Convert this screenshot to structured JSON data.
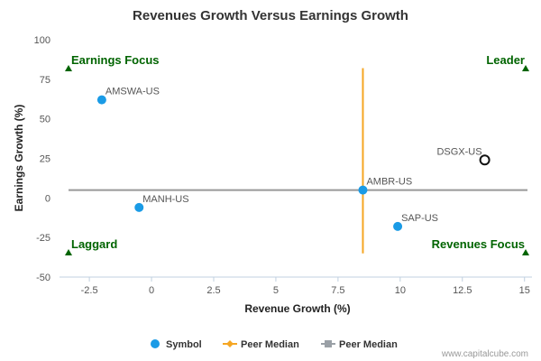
{
  "chart_data": {
    "type": "scatter",
    "title": "Revenues Growth Versus Earnings Growth",
    "xlabel": "Revenue Growth (%)",
    "ylabel": "Earnings Growth (%)",
    "xlim": [
      -3.7,
      15.3
    ],
    "ylim": [
      -50,
      100
    ],
    "x_ticks": [
      -2.5,
      0,
      2.5,
      5,
      7.5,
      10,
      12.5,
      15
    ],
    "x_tick_labels": [
      "-2.5",
      "0",
      "2.5",
      "5",
      "7.5",
      "10",
      "12.5",
      "15"
    ],
    "y_ticks": [
      -50,
      -25,
      0,
      25,
      50,
      75,
      100
    ],
    "y_tick_labels": [
      "-50",
      "-25",
      "0",
      "25",
      "50",
      "75",
      "100"
    ],
    "grid": false,
    "points": [
      {
        "label": "AMSWA-US",
        "x": -2.0,
        "y": 62,
        "highlight": false
      },
      {
        "label": "MANH-US",
        "x": -0.5,
        "y": -6,
        "highlight": false
      },
      {
        "label": "AMBR-US",
        "x": 8.5,
        "y": 5,
        "highlight": false
      },
      {
        "label": "SAP-US",
        "x": 9.9,
        "y": -18,
        "highlight": false
      },
      {
        "label": "DSGX-US",
        "x": 13.4,
        "y": 24,
        "highlight": true
      }
    ],
    "peer_median": {
      "x": 8.5,
      "y": 5
    },
    "quadrants": {
      "top_left": "Earnings Focus",
      "top_right": "Leader",
      "bottom_left": "Laggard",
      "bottom_right": "Revenues Focus"
    },
    "legend": {
      "position": "bottom",
      "items": [
        {
          "label": "Symbol",
          "marker": "circle",
          "color": "#1a9be6"
        },
        {
          "label": "Peer Median",
          "marker": "diamond-line",
          "color": "#f5a623"
        },
        {
          "label": "Peer Median",
          "marker": "square-line",
          "color": "#9aa0a6"
        }
      ]
    },
    "colors": {
      "point": "#1a9be6",
      "highlight_fill": "#ffffff",
      "highlight_stroke": "#111111",
      "vertical_median": "#f5a623",
      "horizontal_median": "#999999",
      "quadrant_text": "#006400"
    }
  },
  "credit": "www.capitalcube.com"
}
